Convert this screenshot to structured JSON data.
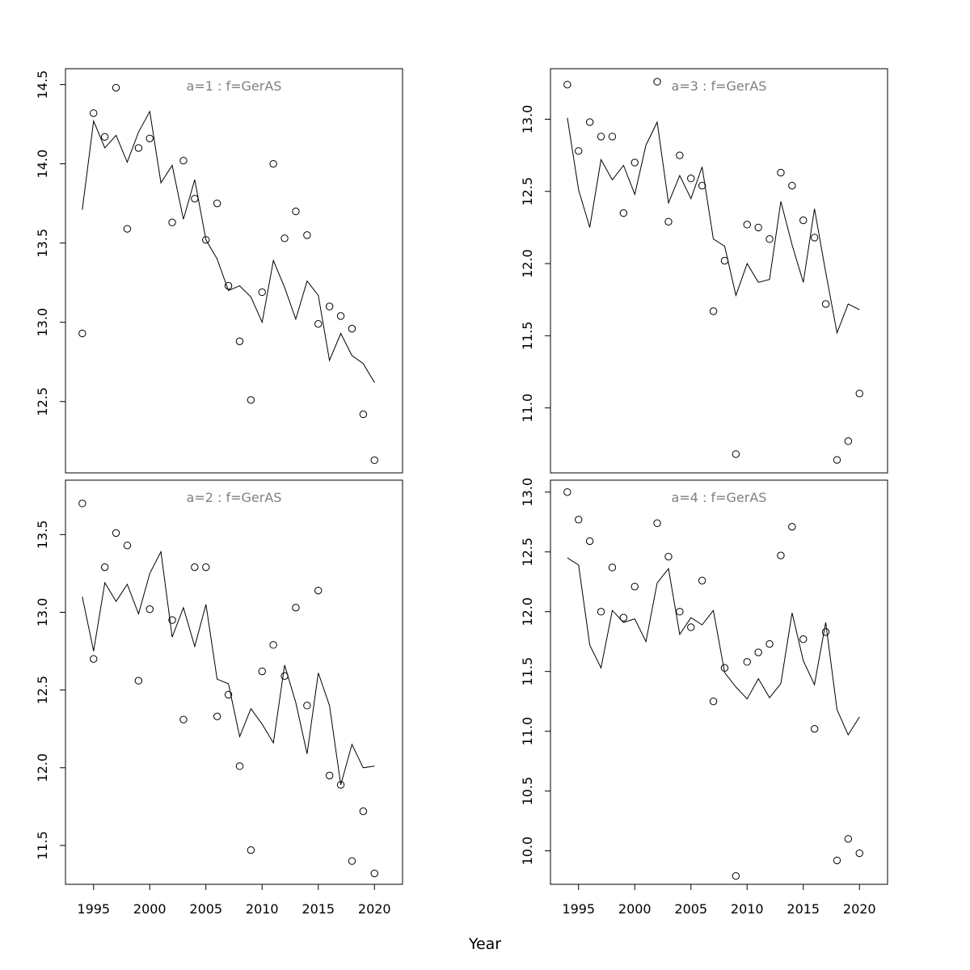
{
  "chart_data": {
    "xlabel": "Year",
    "x_ticks": [
      1995,
      2000,
      2005,
      2010,
      2015,
      2020
    ],
    "panels": [
      {
        "type": "line+scatter",
        "title": "a=1  :  f=GerAS",
        "xlim": [
          1992.5,
          2022.5
        ],
        "ylim": [
          12.05,
          14.6
        ],
        "y_ticks": [
          12.5,
          13.0,
          13.5,
          14.0,
          14.5
        ],
        "y_tick_labels": [
          "12.5",
          "13.0",
          "13.5",
          "14.0",
          "14.5"
        ],
        "x": [
          1994,
          1995,
          1996,
          1997,
          1998,
          1999,
          2000,
          2001,
          2002,
          2003,
          2004,
          2005,
          2006,
          2007,
          2008,
          2009,
          2010,
          2011,
          2012,
          2013,
          2014,
          2015,
          2016,
          2017,
          2018,
          2019,
          2020
        ],
        "line_values": [
          13.71,
          14.27,
          14.1,
          14.18,
          14.01,
          14.2,
          14.33,
          13.88,
          13.99,
          13.65,
          13.9,
          13.52,
          13.4,
          13.2,
          13.23,
          13.16,
          13.0,
          13.39,
          13.22,
          13.02,
          13.26,
          13.17,
          12.76,
          12.93,
          12.79,
          12.74,
          12.62
        ],
        "points": [
          12.93,
          14.32,
          14.17,
          14.48,
          13.59,
          14.1,
          14.16,
          null,
          13.63,
          14.02,
          13.78,
          13.52,
          13.75,
          13.23,
          12.88,
          12.51,
          13.19,
          14.0,
          13.53,
          13.7,
          13.55,
          12.99,
          13.1,
          13.04,
          12.96,
          12.42,
          12.13
        ]
      },
      {
        "type": "line+scatter",
        "title": "a=2  :  f=GerAS",
        "xlim": [
          1992.5,
          2022.5
        ],
        "ylim": [
          11.25,
          13.85
        ],
        "y_ticks": [
          11.5,
          12.0,
          12.5,
          13.0,
          13.5
        ],
        "y_tick_labels": [
          "11.5",
          "12.0",
          "12.5",
          "13.0",
          "13.5"
        ],
        "x": [
          1994,
          1995,
          1996,
          1997,
          1998,
          1999,
          2000,
          2001,
          2002,
          2003,
          2004,
          2005,
          2006,
          2007,
          2008,
          2009,
          2010,
          2011,
          2012,
          2013,
          2014,
          2015,
          2016,
          2017,
          2018,
          2019,
          2020
        ],
        "line_values": [
          13.1,
          12.75,
          13.19,
          13.07,
          13.18,
          12.99,
          13.25,
          13.39,
          12.84,
          13.03,
          12.78,
          13.05,
          12.57,
          12.54,
          12.2,
          12.38,
          12.28,
          12.16,
          12.66,
          12.42,
          12.09,
          12.61,
          12.4,
          11.89,
          12.15,
          12.0,
          12.01
        ],
        "points": [
          13.7,
          12.7,
          13.29,
          13.51,
          13.43,
          12.56,
          13.02,
          null,
          12.95,
          12.31,
          13.29,
          13.29,
          12.33,
          12.47,
          12.01,
          11.47,
          12.62,
          12.79,
          12.59,
          13.03,
          12.4,
          13.14,
          11.95,
          11.89,
          11.4,
          11.72,
          11.32
        ]
      },
      {
        "type": "line+scatter",
        "title": "a=3  :  f=GerAS",
        "xlim": [
          1992.5,
          2022.5
        ],
        "ylim": [
          10.55,
          13.35
        ],
        "y_ticks": [
          11.0,
          11.5,
          12.0,
          12.5,
          13.0
        ],
        "y_tick_labels": [
          "11.0",
          "11.5",
          "12.0",
          "12.5",
          "13.0"
        ],
        "x": [
          1994,
          1995,
          1996,
          1997,
          1998,
          1999,
          2000,
          2001,
          2002,
          2003,
          2004,
          2005,
          2006,
          2007,
          2008,
          2009,
          2010,
          2011,
          2012,
          2013,
          2014,
          2015,
          2016,
          2017,
          2018,
          2019,
          2020
        ],
        "line_values": [
          13.01,
          12.51,
          12.25,
          12.72,
          12.58,
          12.68,
          12.48,
          12.82,
          12.98,
          12.42,
          12.61,
          12.45,
          12.67,
          12.17,
          12.12,
          11.78,
          12.0,
          11.87,
          11.89,
          12.43,
          12.13,
          11.87,
          12.38,
          11.94,
          11.52,
          11.72,
          11.68
        ],
        "points": [
          13.24,
          12.78,
          12.98,
          12.88,
          12.88,
          12.35,
          12.7,
          null,
          13.26,
          12.29,
          12.75,
          12.59,
          12.54,
          11.67,
          12.02,
          10.68,
          12.27,
          12.25,
          12.17,
          12.63,
          12.54,
          12.3,
          12.18,
          11.72,
          10.64,
          10.77,
          11.1
        ]
      },
      {
        "type": "line+scatter",
        "title": "a=4  :  f=GerAS",
        "xlim": [
          1992.5,
          2022.5
        ],
        "ylim": [
          9.72,
          13.1
        ],
        "y_ticks": [
          10.0,
          10.5,
          11.0,
          11.5,
          12.0,
          12.5,
          13.0
        ],
        "y_tick_labels": [
          "10.0",
          "10.5",
          "11.0",
          "11.5",
          "12.0",
          "12.5",
          "13.0"
        ],
        "x": [
          1994,
          1995,
          1996,
          1997,
          1998,
          1999,
          2000,
          2001,
          2002,
          2003,
          2004,
          2005,
          2006,
          2007,
          2008,
          2009,
          2010,
          2011,
          2012,
          2013,
          2014,
          2015,
          2016,
          2017,
          2018,
          2019,
          2020
        ],
        "line_values": [
          12.45,
          12.39,
          11.72,
          11.53,
          12.01,
          11.91,
          11.94,
          11.75,
          12.24,
          12.36,
          11.81,
          11.95,
          11.89,
          12.01,
          11.49,
          11.37,
          11.27,
          11.44,
          11.28,
          11.4,
          11.99,
          11.59,
          11.39,
          11.91,
          11.18,
          10.97,
          11.12
        ],
        "points": [
          13.0,
          12.77,
          12.59,
          12.0,
          12.37,
          11.95,
          12.21,
          null,
          12.74,
          12.46,
          12.0,
          11.87,
          12.26,
          11.25,
          11.53,
          9.79,
          11.58,
          11.66,
          11.73,
          12.47,
          12.71,
          11.77,
          11.02,
          11.83,
          9.92,
          10.1,
          9.98
        ]
      }
    ]
  }
}
